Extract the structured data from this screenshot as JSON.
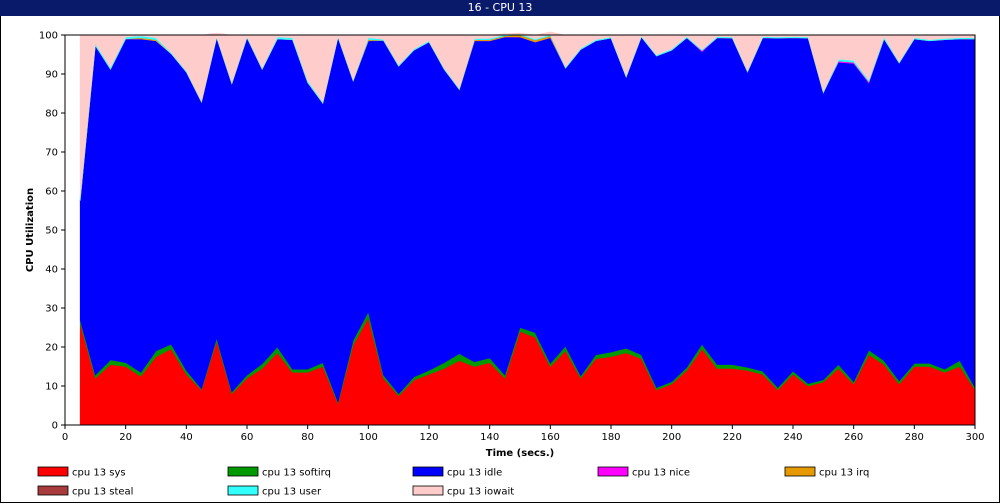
{
  "window": {
    "title": "16 - CPU 13"
  },
  "chart_data": {
    "type": "area",
    "stacked": true,
    "title": "16 - CPU 13",
    "xlabel": "Time (secs.)",
    "ylabel": "CPU Utilization",
    "xlim": [
      0,
      300
    ],
    "ylim": [
      0,
      100
    ],
    "xticks": [
      0,
      20,
      40,
      60,
      80,
      100,
      120,
      140,
      160,
      180,
      200,
      220,
      240,
      260,
      280,
      300
    ],
    "yticks": [
      0,
      10,
      20,
      30,
      40,
      50,
      60,
      70,
      80,
      90,
      100
    ],
    "grid": false,
    "legend_position": "bottom",
    "x": [
      5,
      10,
      15,
      20,
      25,
      30,
      35,
      40,
      45,
      50,
      55,
      60,
      65,
      70,
      75,
      80,
      85,
      90,
      95,
      100,
      105,
      110,
      115,
      120,
      125,
      130,
      135,
      140,
      145,
      150,
      155,
      160,
      165,
      170,
      175,
      180,
      185,
      190,
      195,
      200,
      205,
      210,
      215,
      220,
      225,
      230,
      235,
      240,
      245,
      250,
      255,
      260,
      265,
      270,
      275,
      280,
      285,
      290,
      295,
      300
    ],
    "series": [
      {
        "name": "cpu 13 sys",
        "color": "#ff0000",
        "values": [
          26,
          12,
          15.5,
          15,
          12.5,
          17.5,
          19.5,
          13,
          9,
          21.5,
          8,
          12,
          14.5,
          18.5,
          13.5,
          13.5,
          15,
          5.5,
          20.5,
          27.5,
          12,
          7.5,
          11.5,
          13,
          14.5,
          16.5,
          15,
          16,
          12,
          24,
          22.5,
          15,
          19,
          12,
          17,
          17.5,
          18.5,
          17,
          9,
          10.5,
          14,
          19.5,
          14.5,
          14.5,
          14,
          13,
          9,
          13,
          10,
          11,
          14.5,
          10.5,
          18,
          15.5,
          10.5,
          15,
          15,
          13.5,
          15,
          9
        ]
      },
      {
        "name": "cpu 13 softirq",
        "color": "#009900",
        "values": [
          1,
          0.8,
          1.2,
          1,
          1,
          1.5,
          1.2,
          1,
          0.3,
          0.8,
          0.5,
          0.8,
          1.2,
          1.5,
          0.8,
          0.8,
          1,
          0.4,
          1.2,
          1.5,
          0.8,
          0.5,
          0.8,
          1,
          1.5,
          1.8,
          1.2,
          1.2,
          0.8,
          1,
          1.2,
          0.8,
          1.2,
          0.6,
          1,
          1.2,
          1.2,
          1,
          0.6,
          0.6,
          0.8,
          1.2,
          1,
          1,
          0.8,
          0.8,
          0.6,
          0.8,
          0.6,
          0.6,
          1,
          0.6,
          1.2,
          1,
          0.8,
          0.8,
          0.8,
          0.8,
          1.5,
          0.6
        ]
      },
      {
        "name": "cpu 13 idle",
        "color": "#0000ff",
        "values": [
          30.5,
          84.5,
          74.5,
          83,
          85.5,
          79.5,
          74.5,
          76.5,
          73.5,
          77,
          79,
          86.5,
          75.5,
          79,
          84.5,
          73.5,
          66.5,
          93.5,
          66.5,
          69.5,
          85.8,
          84,
          83.8,
          84.2,
          75.2,
          67.7,
          82.3,
          81.3,
          86.7,
          74.5,
          74.5,
          83.5,
          71.3,
          83.7,
          80.5,
          80.5,
          69.5,
          81.5,
          85,
          85,
          84.5,
          75,
          83.8,
          83.7,
          75.7,
          85.5,
          89.6,
          85.5,
          88.6,
          73.6,
          77.5,
          81.6,
          68.5,
          82.5,
          81.5,
          83.2,
          82.7,
          84.5,
          82.5,
          89.4
        ]
      },
      {
        "name": "cpu 13 nice",
        "color": "#ff00ff",
        "values": [
          0,
          0,
          0,
          0,
          0,
          0,
          0,
          0,
          0,
          0,
          0,
          0,
          0,
          0,
          0,
          0,
          0,
          0,
          0,
          0,
          0,
          0,
          0,
          0,
          0,
          0,
          0,
          0,
          0,
          0,
          0,
          0,
          0,
          0,
          0,
          0,
          0,
          0,
          0,
          0,
          0,
          0.3,
          0,
          0,
          0,
          0,
          0,
          0,
          0,
          0,
          0.3,
          0.3,
          0.3,
          0,
          0,
          0,
          0,
          0,
          0,
          0
        ]
      },
      {
        "name": "cpu 13 irq",
        "color": "#e69900",
        "values": [
          0,
          0,
          0,
          0,
          0.3,
          0.3,
          0,
          0,
          0,
          0,
          0,
          0,
          0,
          0,
          0,
          0,
          0,
          0,
          0,
          0.3,
          0,
          0,
          0,
          0,
          0,
          0,
          0.3,
          0.3,
          0.3,
          0.5,
          0.5,
          0.5,
          0,
          0,
          0,
          0,
          0,
          0,
          0,
          0,
          0,
          0,
          0,
          0,
          0,
          0,
          0,
          0,
          0,
          0,
          0,
          0,
          0,
          0,
          0,
          0,
          0,
          0,
          0,
          0
        ]
      },
      {
        "name": "cpu 13 steal",
        "color": "#a83c3c",
        "values": [
          0,
          0,
          0,
          0,
          0,
          0,
          0,
          0,
          0,
          0,
          0,
          0,
          0,
          0,
          0,
          0,
          0,
          0,
          0,
          0,
          0,
          0,
          0,
          0,
          0,
          0,
          0,
          0,
          0,
          0,
          0,
          0,
          0,
          0,
          0,
          0,
          0,
          0,
          0,
          0,
          0,
          0,
          0,
          0,
          0,
          0,
          0,
          0,
          0,
          0,
          0,
          0,
          0,
          0,
          0,
          0,
          0,
          0,
          0,
          0
        ]
      },
      {
        "name": "cpu 13 user",
        "color": "#33ffff",
        "values": [
          1,
          0.5,
          0.5,
          0.5,
          0.5,
          0.5,
          0.3,
          0.3,
          0.2,
          0.3,
          0.3,
          0.3,
          0.3,
          0.5,
          0.5,
          0.5,
          0.3,
          0.3,
          0.3,
          0.5,
          0.3,
          0.3,
          0.3,
          0.3,
          0.3,
          0.3,
          0.3,
          0.3,
          0.3,
          0.3,
          0.3,
          0.3,
          0.3,
          0.3,
          0.3,
          0.3,
          0.3,
          0.3,
          0.3,
          0.3,
          0.3,
          0.3,
          0.3,
          0.3,
          0.3,
          0.3,
          0.3,
          0.3,
          0.3,
          0.3,
          0.5,
          0.5,
          0.5,
          0.5,
          0.3,
          0.3,
          0.3,
          0.3,
          0.3,
          0.3
        ]
      },
      {
        "name": "cpu 13 iowait",
        "color": "#ffcccc",
        "values": [
          41.5,
          2.2,
          8.3,
          0.5,
          0.2,
          0.7,
          4.5,
          9.2,
          17,
          0.9,
          12.2,
          0.4,
          8.5,
          0.5,
          0.7,
          11.7,
          17.2,
          0.3,
          11.5,
          0.7,
          1.1,
          7.7,
          3.6,
          1.5,
          8.5,
          13.7,
          0.9,
          0.9,
          0.2,
          0.2,
          1,
          0.7,
          8.2,
          3.4,
          1.2,
          0.5,
          10.5,
          0.2,
          5.1,
          3.6,
          0.4,
          3.7,
          0.4,
          0.5,
          9.2,
          0.4,
          0.5,
          0.4,
          0.5,
          14.5,
          6.2,
          6.5,
          11.5,
          0.5,
          6.9,
          0.7,
          1.2,
          0.9,
          0.7,
          0.7
        ]
      }
    ]
  }
}
